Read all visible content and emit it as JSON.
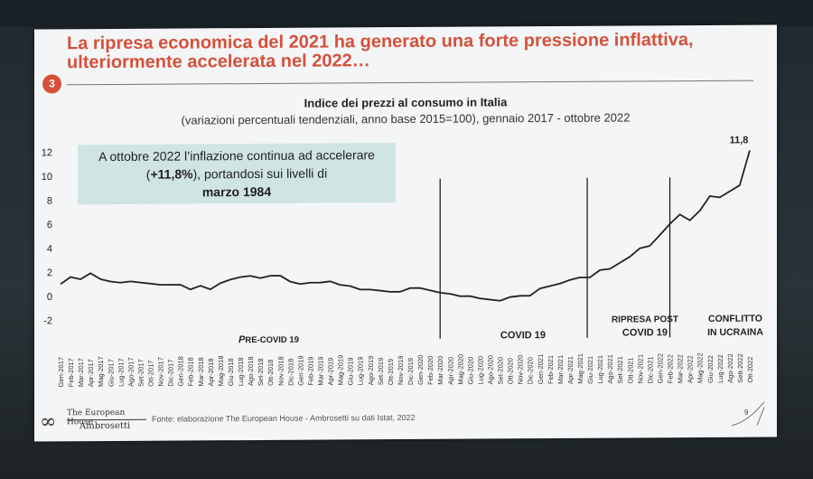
{
  "slide": {
    "title_line1": "La ripresa economica del 2021 ha generato una forte pressione inflattiva,",
    "title_line2": "ulteriormente accelerata nel 2022…",
    "section_number": "3",
    "accent_color": "#d4513c",
    "callout": {
      "text_before": "A ottobre 2022 l’inflazione continua ad accelerare (",
      "text_bold": "+11,8%",
      "text_after": "), portandosi sui livelli di",
      "text_bold2": "marzo 1984",
      "background": "#cfe4e3"
    },
    "source": "Fonte: elaborazione The European House - Ambrosetti su dati Istat, 2022",
    "logo_line1": "The European House",
    "logo_line2": "Ambrosetti",
    "page_number": "9"
  },
  "chart_data": {
    "type": "line",
    "title": "Indice dei prezzi al consumo in Italia",
    "subtitle": "(variazioni percentuali tendenziali, anno base 2015=100), gennaio 2017 - ottobre 2022",
    "ylim": [
      -2,
      12
    ],
    "yticks": [
      "12",
      "10",
      "8",
      "6",
      "4",
      "2",
      "0",
      "-2"
    ],
    "ytick_values": [
      12,
      10,
      8,
      6,
      4,
      2,
      0,
      -2
    ],
    "grid": false,
    "categories": [
      "Gen-2017",
      "Feb-2017",
      "Mar-2017",
      "Apr-2017",
      "Mag-2017",
      "Giu-2017",
      "Lug-2017",
      "Ago-2017",
      "Set-2017",
      "Ott-2017",
      "Nov-2017",
      "Dic-2017",
      "Gen-2018",
      "Feb-2018",
      "Mar-2018",
      "Apr-2018",
      "Mag-2018",
      "Giu-2018",
      "Lug-2018",
      "Ago-2018",
      "Set-2018",
      "Ott-2018",
      "Nov-2018",
      "Dic-2018",
      "Gen-2019",
      "Feb-2019",
      "Mar-2019",
      "Apr-2019",
      "Mag-2019",
      "Giu-2019",
      "Lug-2019",
      "Ago-2019",
      "Set-2019",
      "Ott-2019",
      "Nov-2019",
      "Dic-2019",
      "Gen-2020",
      "Feb-2020",
      "Mar-2020",
      "Apr-2020",
      "Mag-2020",
      "Giu-2020",
      "Lug-2020",
      "Ago-2020",
      "Set-2020",
      "Ott-2020",
      "Nov-2020",
      "Dic-2020",
      "Gen-2021",
      "Feb-2021",
      "Mar-2021",
      "Apr-2021",
      "Mag-2021",
      "Giu-2021",
      "Lug-2021",
      "Ago-2021",
      "Set-2021",
      "Ott-2021",
      "Nov-2021",
      "Dic-2021",
      "Gen-2022",
      "Feb-2022",
      "Mar-2022",
      "Apr-2022",
      "Mag-2022",
      "Giu-2022",
      "Lug-2022",
      "Ago-2022",
      "Sett-2022",
      "Ott-2022"
    ],
    "series": [
      {
        "values": [
          1.0,
          1.6,
          1.4,
          1.9,
          1.4,
          1.2,
          1.1,
          1.2,
          1.1,
          1.0,
          0.9,
          0.9,
          0.9,
          0.5,
          0.8,
          0.5,
          1.0,
          1.3,
          1.5,
          1.6,
          1.4,
          1.6,
          1.6,
          1.1,
          0.9,
          1.0,
          1.0,
          1.1,
          0.8,
          0.7,
          0.4,
          0.4,
          0.3,
          0.2,
          0.2,
          0.5,
          0.5,
          0.3,
          0.1,
          0.0,
          -0.2,
          -0.2,
          -0.4,
          -0.5,
          -0.6,
          -0.3,
          -0.2,
          -0.2,
          0.4,
          0.6,
          0.8,
          1.1,
          1.3,
          1.3,
          1.9,
          2.0,
          2.5,
          3.0,
          3.7,
          3.9,
          4.8,
          5.7,
          6.5,
          6.0,
          6.8,
          8.0,
          7.9,
          8.4,
          8.9,
          11.8
        ],
        "color": "#222222"
      }
    ],
    "annotations": [
      {
        "label": "11,8",
        "category": "Ott-2022"
      },
      {
        "label_prefix": "P",
        "label_rest": "RE-COVID 19",
        "label_full": "PRE-COVID 19"
      },
      {
        "label_full": "COVID 19"
      },
      {
        "label_line1": "RIPRESA POST",
        "label_line2": "COVID 19"
      },
      {
        "label_line1": "CONFLITTO",
        "label_line2": "IN UCRAINA"
      }
    ],
    "vertical_markers": [
      "Mar-2020",
      "Giu-2021",
      "Feb-2022"
    ]
  }
}
